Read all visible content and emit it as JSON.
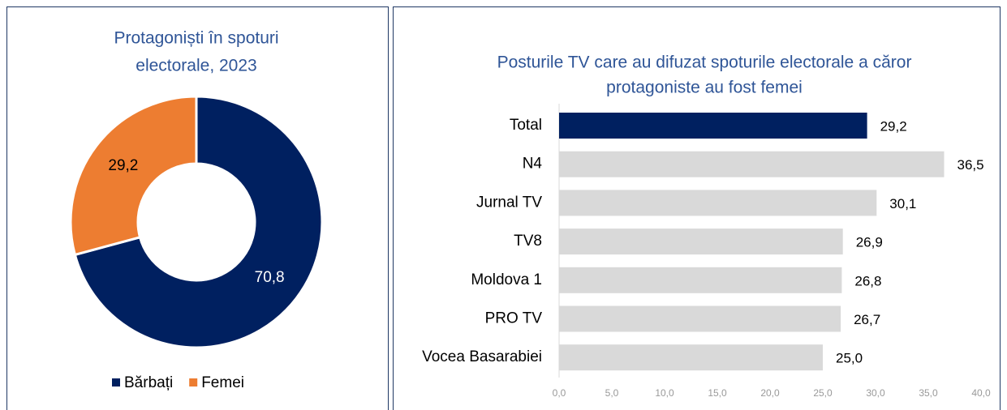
{
  "chart_data": [
    {
      "type": "donut",
      "title": [
        "Protagoniști în spoturi",
        "electorale, 2023"
      ],
      "categories": [
        "Bărbați",
        "Femei"
      ],
      "values": [
        70.8,
        29.2
      ],
      "value_labels": [
        "70,8",
        "29,2"
      ],
      "colors": [
        "#002060",
        "#ed7d31"
      ],
      "legend": "bottom"
    },
    {
      "type": "hbar",
      "title": [
        "Posturile TV care au difuzat spoturile electorale a căror",
        "protagoniste au fost femei"
      ],
      "categories": [
        "Total",
        "N4",
        "Jurnal TV",
        "TV8",
        "Moldova 1",
        "PRO TV",
        "Vocea Basarabiei"
      ],
      "values": [
        29.2,
        36.5,
        30.1,
        26.9,
        26.8,
        26.7,
        25.0
      ],
      "value_labels": [
        "29,2",
        "36,5",
        "30,1",
        "26,9",
        "26,8",
        "26,7",
        "25,0"
      ],
      "colors": [
        "#002060",
        "#d9d9d9",
        "#d9d9d9",
        "#d9d9d9",
        "#d9d9d9",
        "#d9d9d9",
        "#d9d9d9"
      ],
      "xlim": [
        0,
        40
      ],
      "xticks": [
        {
          "value": 0,
          "label": "0,0"
        },
        {
          "value": 5,
          "label": "5,0"
        },
        {
          "value": 10,
          "label": "10,0"
        },
        {
          "value": 15,
          "label": "15,0"
        },
        {
          "value": 20,
          "label": "20,0"
        },
        {
          "value": 25,
          "label": "25,0"
        },
        {
          "value": 30,
          "label": "30,0"
        },
        {
          "value": 35,
          "label": "35,0"
        },
        {
          "value": 40,
          "label": "40,0"
        }
      ]
    }
  ]
}
